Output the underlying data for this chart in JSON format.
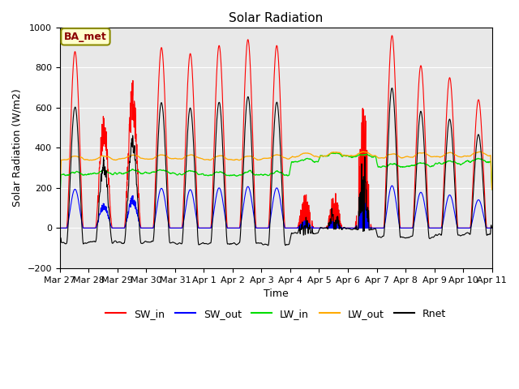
{
  "title": "Solar Radiation",
  "xlabel": "Time",
  "ylabel": "Solar Radiation (W/m2)",
  "ylim": [
    -200,
    1000
  ],
  "yticks": [
    -200,
    0,
    200,
    400,
    600,
    800,
    1000
  ],
  "annotation": "BA_met",
  "colors": {
    "SW_in": "#ff0000",
    "SW_out": "#0000ff",
    "LW_in": "#00dd00",
    "LW_out": "#ffaa00",
    "Rnet": "#000000"
  },
  "bg_color": "#e8e8e8",
  "x_tick_labels": [
    "Mar 27",
    "Mar 28",
    "Mar 29",
    "Mar 30",
    "Mar 31",
    "Apr 1",
    "Apr 2",
    "Apr 3",
    "Apr 4",
    "Apr 5",
    "Apr 6",
    "Apr 7",
    "Apr 8",
    "Apr 9",
    "Apr 10",
    "Apr 11"
  ],
  "n_days": 15,
  "pts_per_day": 144,
  "cloud_cover": [
    0.05,
    0.3,
    0.2,
    0.05,
    0.05,
    0.05,
    0.05,
    0.05,
    0.85,
    0.9,
    0.7,
    0.05,
    0.05,
    0.05,
    0.05
  ],
  "sw_in_peaks": [
    880,
    580,
    750,
    900,
    870,
    910,
    940,
    910,
    200,
    180,
    640,
    960,
    810,
    750,
    640
  ],
  "lw_in_base": [
    265,
    270,
    275,
    275,
    270,
    265,
    265,
    265,
    330,
    360,
    355,
    305,
    310,
    320,
    330
  ],
  "lw_out_base": [
    340,
    340,
    345,
    345,
    345,
    340,
    340,
    345,
    355,
    360,
    360,
    350,
    355,
    355,
    360
  ],
  "night_rnet": -80
}
